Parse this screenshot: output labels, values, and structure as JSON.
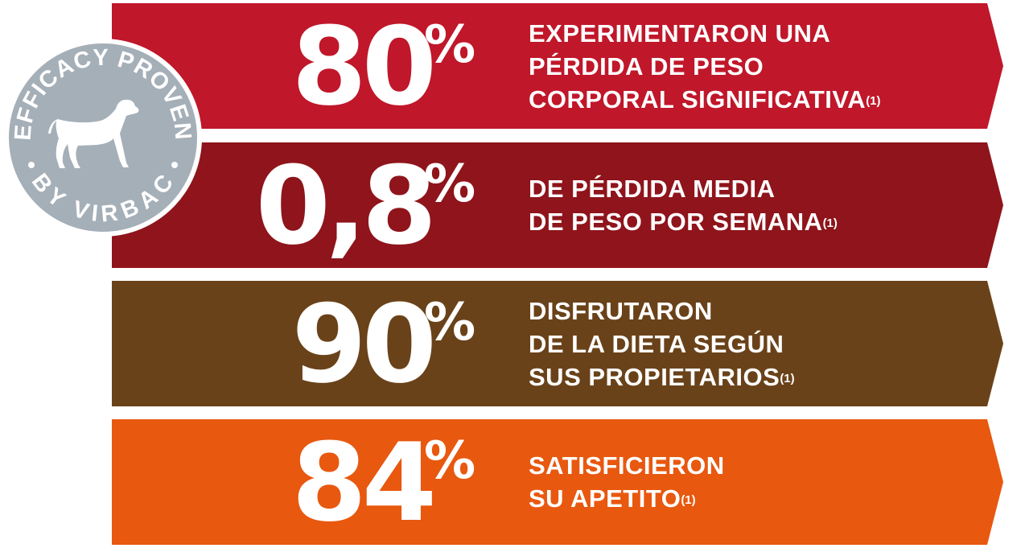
{
  "colors": {
    "band_1": "#c0172a",
    "band_2": "#8f141b",
    "band_3": "#6a4219",
    "band_4": "#e8580f",
    "badge_fill": "#a5afb8",
    "badge_ring": "#ffffff"
  },
  "badge": {
    "top_text": "EFFICACY PROVEN",
    "bottom_text": "BY VIRBAC",
    "icon": "dog-icon"
  },
  "stats": [
    {
      "value": "80",
      "symbol": "%",
      "lines": [
        "EXPERIMENTARON UNA",
        "PÉRDIDA DE PESO",
        "CORPORAL SIGNIFICATIVA"
      ],
      "note": "(1)"
    },
    {
      "value": "0,8",
      "symbol": "%",
      "lines": [
        "DE PÉRDIDA MEDIA",
        "DE PESO POR SEMANA"
      ],
      "note": "(1)"
    },
    {
      "value": "90",
      "symbol": "%",
      "lines": [
        "DISFRUTARON",
        "DE LA DIETA SEGÚN",
        "SUS PROPIETARIOS"
      ],
      "note": "(1)"
    },
    {
      "value": "84",
      "symbol": "%",
      "lines": [
        "SATISFICIERON",
        "SU APETITO"
      ],
      "note": "(1)"
    }
  ]
}
